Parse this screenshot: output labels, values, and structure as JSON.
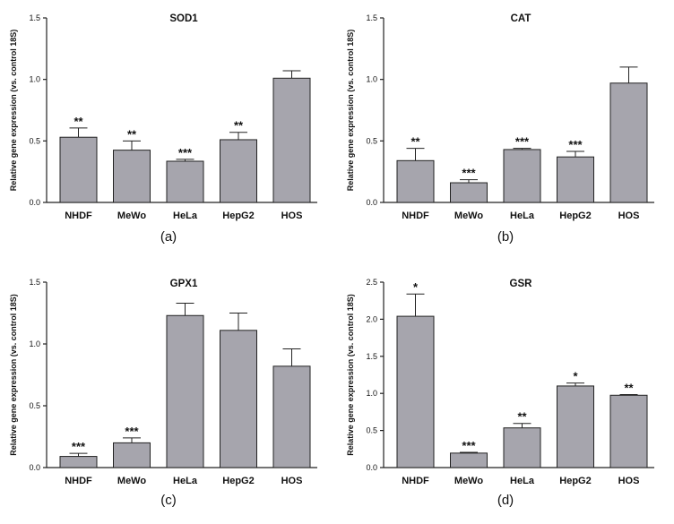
{
  "chart_data": [
    {
      "type": "bar",
      "title": "SOD1",
      "ylabel": "Relative gene expression (vs. control 18S)",
      "categories": [
        "NHDF",
        "MeWo",
        "HeLa",
        "HepG2",
        "HOS"
      ],
      "values": [
        0.53,
        0.425,
        0.335,
        0.51,
        1.01
      ],
      "errors": [
        0.075,
        0.075,
        0.015,
        0.06,
        0.06
      ],
      "significance": [
        "**",
        "**",
        "***",
        "**",
        ""
      ],
      "ylim": [
        0,
        1.5
      ],
      "yticks": [
        "0.0",
        "0.5",
        "1.0",
        "1.5"
      ],
      "panel_label": "(a)",
      "bar_color": "#a6a5ad"
    },
    {
      "type": "bar",
      "title": "CAT",
      "ylabel": "Relative gene expression (vs. control 18S)",
      "categories": [
        "NHDF",
        "MeWo",
        "HeLa",
        "HepG2",
        "HOS"
      ],
      "values": [
        0.34,
        0.16,
        0.43,
        0.37,
        0.97
      ],
      "errors": [
        0.1,
        0.025,
        0.01,
        0.045,
        0.13
      ],
      "significance": [
        "**",
        "***",
        "***",
        "***",
        ""
      ],
      "ylim": [
        0,
        1.5
      ],
      "yticks": [
        "0.0",
        "0.5",
        "1.0",
        "1.5"
      ],
      "panel_label": "(b)",
      "bar_color": "#a6a5ad"
    },
    {
      "type": "bar",
      "title": "GPX1",
      "ylabel": "Relative gene expression (vs. control 18S)",
      "categories": [
        "NHDF",
        "MeWo",
        "HeLa",
        "HepG2",
        "HOS"
      ],
      "values": [
        0.09,
        0.2,
        1.23,
        1.11,
        0.82
      ],
      "errors": [
        0.025,
        0.04,
        0.1,
        0.14,
        0.14
      ],
      "significance": [
        "***",
        "***",
        "",
        "",
        ""
      ],
      "ylim": [
        0,
        1.5
      ],
      "yticks": [
        "0.0",
        "0.5",
        "1.0",
        "1.5"
      ],
      "panel_label": "(c)",
      "bar_color": "#a6a5ad"
    },
    {
      "type": "bar",
      "title": "GSR",
      "ylabel": "Relative gene expression (vs. control 18S)",
      "categories": [
        "NHDF",
        "MeWo",
        "HeLa",
        "HepG2",
        "HOS"
      ],
      "values": [
        2.04,
        0.195,
        0.535,
        1.1,
        0.975
      ],
      "errors": [
        0.3,
        0.01,
        0.06,
        0.04,
        0.01
      ],
      "significance": [
        "*",
        "***",
        "**",
        "*",
        "**"
      ],
      "ylim": [
        0,
        2.5
      ],
      "yticks": [
        "0.0",
        "0.5",
        "1.0",
        "1.5",
        "2.0",
        "2.5"
      ],
      "panel_label": "(d)",
      "bar_color": "#a6a5ad"
    }
  ]
}
